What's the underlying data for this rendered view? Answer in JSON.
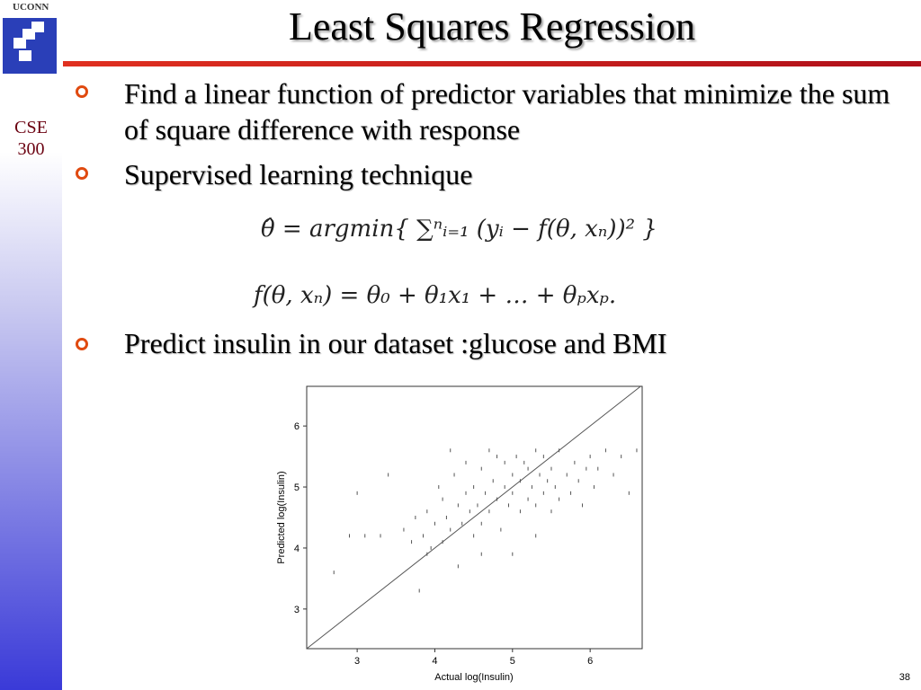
{
  "logo": {
    "text": "UCONN"
  },
  "sidebar": {
    "course": "CSE",
    "number": "300"
  },
  "title": "Least Squares Regression",
  "bullets": [
    "Find a linear function of predictor variables that minimize the sum of square difference with response",
    "Supervised learning technique",
    "Predict insulin in our dataset :glucose and BMI"
  ],
  "formulas": [
    "θ̂ = argmin{ ∑ⁿᵢ₌₁ (yᵢ − f(θ, xₙ))² }",
    "f(θ, xₙ) = θ₀ + θ₁x₁ + … + θₚxₚ."
  ],
  "page_number": "38",
  "chart_data": {
    "type": "scatter",
    "xlabel": "Actual log(Insulin)",
    "ylabel": "Predicted log(Insulin)",
    "color": "#555555",
    "identity_line": true,
    "xlim": [
      2.35,
      6.67
    ],
    "ylim": [
      2.35,
      6.65
    ],
    "xticks": [
      3,
      4,
      5,
      6
    ],
    "yticks": [
      3,
      4,
      5,
      6
    ],
    "x": [
      2.7,
      2.9,
      3.0,
      3.1,
      3.3,
      3.4,
      3.6,
      3.7,
      3.75,
      3.8,
      3.85,
      3.9,
      3.95,
      4.0,
      4.05,
      4.1,
      4.1,
      4.15,
      4.2,
      4.25,
      4.3,
      4.3,
      4.35,
      4.4,
      4.4,
      4.45,
      4.5,
      4.5,
      4.55,
      4.6,
      4.6,
      4.65,
      4.7,
      4.7,
      4.75,
      4.8,
      4.8,
      4.85,
      4.9,
      4.9,
      4.95,
      5.0,
      5.0,
      5.05,
      5.1,
      5.1,
      5.15,
      5.2,
      5.2,
      5.25,
      5.3,
      5.3,
      5.35,
      5.4,
      5.4,
      5.45,
      5.5,
      5.5,
      5.55,
      5.6,
      5.6,
      5.7,
      5.75,
      5.8,
      5.85,
      5.9,
      5.95,
      6.0,
      6.05,
      6.1,
      6.2,
      6.3,
      6.4,
      6.5,
      6.6,
      3.9,
      4.2,
      4.6,
      5.0,
      5.3
    ],
    "values": [
      3.6,
      4.2,
      4.9,
      4.2,
      4.2,
      5.2,
      4.3,
      4.1,
      4.5,
      3.3,
      4.2,
      4.6,
      4.0,
      4.4,
      5.0,
      4.1,
      4.8,
      4.5,
      4.3,
      5.2,
      3.7,
      4.7,
      4.4,
      4.9,
      5.4,
      4.6,
      4.2,
      5.0,
      4.7,
      5.3,
      4.4,
      4.9,
      5.6,
      4.6,
      5.1,
      4.8,
      5.5,
      4.3,
      5.0,
      5.4,
      4.7,
      5.2,
      4.9,
      5.5,
      4.6,
      5.1,
      5.4,
      4.8,
      5.3,
      5.0,
      5.6,
      4.7,
      5.2,
      4.9,
      5.5,
      5.1,
      4.6,
      5.3,
      5.0,
      5.6,
      4.8,
      5.2,
      4.9,
      5.4,
      5.1,
      4.7,
      5.3,
      5.5,
      5.0,
      5.3,
      5.6,
      5.2,
      5.5,
      4.9,
      5.6,
      3.9,
      5.6,
      3.9,
      3.9,
      4.2
    ]
  }
}
